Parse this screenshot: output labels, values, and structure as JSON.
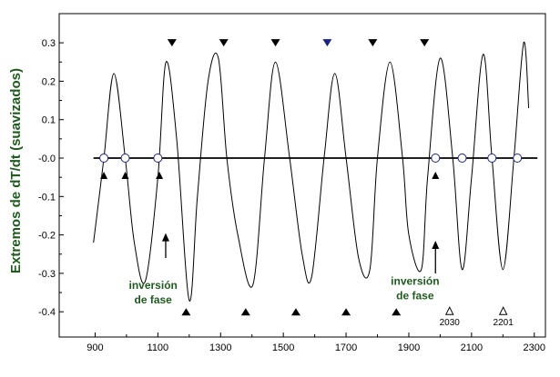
{
  "chart_data": {
    "type": "line",
    "title": "",
    "ylabel": "Extremos de dT/dt (suavizados)",
    "xlabel": "",
    "xlim": [
      800,
      2350
    ],
    "ylim": [
      -0.45,
      0.35
    ],
    "x_ticks": [
      900,
      1100,
      1300,
      1500,
      1700,
      1900,
      2100,
      2300
    ],
    "x_tick_labels": [
      "900",
      "1100",
      "1300",
      "1500",
      "1700",
      "1900",
      "2100",
      "2300"
    ],
    "y_ticks": [
      0.3,
      0.2,
      0.1,
      0.0,
      -0.1,
      -0.2,
      -0.3,
      -0.4
    ],
    "y_tick_labels": [
      "0.3",
      "0.2",
      "0.1",
      "-0.0",
      "-0.1",
      "-0.2",
      "-0.3",
      "-0.4"
    ],
    "grid": false,
    "series": [
      {
        "x": [
          895,
          928,
          960,
          996,
          1025,
          1060,
          1100,
          1126,
          1160,
          1200,
          1226,
          1260,
          1293,
          1320,
          1355,
          1403,
          1440,
          1475,
          1520,
          1560,
          1590,
          1630,
          1664,
          1700,
          1740,
          1776,
          1800,
          1840,
          1880,
          1900,
          1940,
          1960,
          2000,
          2040,
          2070,
          2100,
          2137,
          2165,
          2200,
          2235,
          2266,
          2282
        ],
        "y": [
          -0.22,
          0.0,
          0.22,
          0.0,
          -0.22,
          -0.32,
          -0.05,
          0.25,
          0.05,
          -0.37,
          -0.1,
          0.2,
          0.26,
          0.0,
          -0.2,
          -0.33,
          0.0,
          0.25,
          0.0,
          -0.25,
          -0.31,
          0.0,
          0.22,
          0.0,
          -0.26,
          -0.29,
          0.0,
          0.25,
          0.0,
          -0.2,
          -0.29,
          -0.05,
          0.26,
          0.0,
          -0.29,
          -0.05,
          0.27,
          0.0,
          -0.29,
          0.0,
          0.3,
          0.13
        ]
      }
    ],
    "zero_crossings_x": [
      928,
      996,
      1100,
      1985,
      2070,
      2165,
      2246
    ],
    "maxima_markers_x": [
      1145,
      1310,
      1475,
      1640,
      1785,
      1950
    ],
    "maxima_marker_colors": [
      "#000000",
      "#000000",
      "#000000",
      "#1a237e",
      "#000000",
      "#000000"
    ],
    "minima_markers_x": [
      1190,
      1380,
      1540,
      1700,
      1860
    ],
    "small_down_markers_x": [
      928,
      996,
      1105,
      1985
    ],
    "open_markers": [
      {
        "x": 2030,
        "label": "2030"
      },
      {
        "x": 2201,
        "label": "2201"
      }
    ],
    "annotations": [
      {
        "text_lines": [
          "inversión",
          "de fase"
        ],
        "arrow_x": 1020
      },
      {
        "text_lines": [
          "inversión",
          "de fase"
        ],
        "arrow_x": 1985
      }
    ]
  }
}
